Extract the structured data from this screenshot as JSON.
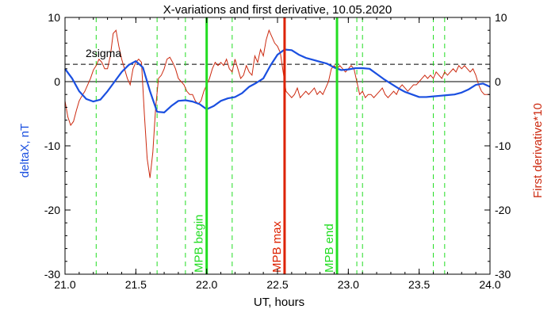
{
  "chart_data": {
    "type": "line",
    "title": "X-variations and first derivative, 10.05.2020",
    "xlabel": "UT, hours",
    "ylabel_left": "deltaX, nT",
    "ylabel_right": "First derivative*10",
    "xlim": [
      21.0,
      24.0
    ],
    "ylim": [
      -30,
      10
    ],
    "x_ticks": [
      "21.0",
      "21.5",
      "22.0",
      "22.5",
      "23.0",
      "23.5",
      "24.0"
    ],
    "x_tick_values": [
      21.0,
      21.5,
      22.0,
      22.5,
      23.0,
      23.5,
      24.0
    ],
    "y_ticks": [
      "10",
      "0",
      "-10",
      "-20",
      "-30"
    ],
    "y_tick_values": [
      10,
      0,
      -10,
      -20,
      -30
    ],
    "sigma_label": "2sigma",
    "sigma_level": 2.7,
    "colors": {
      "deltaX": "#1a4fe0",
      "derivative": "#cc2a10",
      "markers_green": "#22dd22",
      "marker_red": "#dd2200"
    },
    "series": [
      {
        "axis": "left",
        "x": [
          21.0,
          21.05,
          21.1,
          21.15,
          21.2,
          21.25,
          21.3,
          21.35,
          21.4,
          21.45,
          21.5,
          21.55,
          21.6,
          21.65,
          21.7,
          21.75,
          21.8,
          21.85,
          21.9,
          21.95,
          22.0,
          22.05,
          22.1,
          22.15,
          22.2,
          22.25,
          22.3,
          22.35,
          22.4,
          22.45,
          22.5,
          22.55,
          22.6,
          22.65,
          22.7,
          22.75,
          22.8,
          22.85,
          22.9,
          22.95,
          23.0,
          23.05,
          23.1,
          23.15,
          23.2,
          23.25,
          23.3,
          23.35,
          23.4,
          23.45,
          23.5,
          23.55,
          23.6,
          23.65,
          23.7,
          23.75,
          23.8,
          23.85,
          23.9,
          23.95,
          24.0
        ],
        "values": [
          2.0,
          0.5,
          -1.5,
          -2.7,
          -3.1,
          -2.8,
          -1.5,
          0.0,
          1.5,
          2.6,
          3.2,
          2.2,
          -1.5,
          -4.7,
          -4.8,
          -3.8,
          -3.0,
          -2.9,
          -3.1,
          -3.5,
          -4.3,
          -3.8,
          -3.0,
          -2.6,
          -2.4,
          -1.8,
          -0.8,
          -0.2,
          0.5,
          2.5,
          4.2,
          5.0,
          4.9,
          4.2,
          3.7,
          3.4,
          3.1,
          2.8,
          2.2,
          1.8,
          1.9,
          2.1,
          2.1,
          2.0,
          1.2,
          0.4,
          -0.3,
          -1.0,
          -1.6,
          -2.0,
          -2.4,
          -2.4,
          -2.3,
          -2.2,
          -2.1,
          -2.0,
          -1.7,
          -1.2,
          -0.5,
          -0.3,
          -0.8
        ]
      },
      {
        "axis": "right",
        "x": [
          21.0,
          21.02,
          21.04,
          21.06,
          21.08,
          21.1,
          21.12,
          21.14,
          21.16,
          21.18,
          21.2,
          21.22,
          21.24,
          21.26,
          21.28,
          21.3,
          21.32,
          21.34,
          21.36,
          21.38,
          21.4,
          21.42,
          21.44,
          21.46,
          21.48,
          21.5,
          21.52,
          21.54,
          21.56,
          21.58,
          21.6,
          21.62,
          21.64,
          21.66,
          21.68,
          21.7,
          21.72,
          21.74,
          21.76,
          21.78,
          21.8,
          21.82,
          21.84,
          21.86,
          21.88,
          21.9,
          21.92,
          21.94,
          21.96,
          21.98,
          22.0,
          22.02,
          22.04,
          22.06,
          22.08,
          22.1,
          22.12,
          22.14,
          22.16,
          22.18,
          22.2,
          22.22,
          22.24,
          22.26,
          22.28,
          22.3,
          22.32,
          22.34,
          22.36,
          22.38,
          22.4,
          22.42,
          22.44,
          22.46,
          22.48,
          22.5,
          22.52,
          22.54,
          22.56,
          22.58,
          22.6,
          22.62,
          22.64,
          22.66,
          22.68,
          22.7,
          22.72,
          22.74,
          22.76,
          22.78,
          22.8,
          22.82,
          22.84,
          22.86,
          22.88,
          22.9,
          22.92,
          22.94,
          22.96,
          22.98,
          23.0,
          23.02,
          23.04,
          23.06,
          23.08,
          23.1,
          23.12,
          23.14,
          23.16,
          23.18,
          23.2,
          23.22,
          23.24,
          23.26,
          23.28,
          23.3,
          23.32,
          23.34,
          23.36,
          23.38,
          23.4,
          23.42,
          23.44,
          23.46,
          23.48,
          23.5,
          23.52,
          23.54,
          23.56,
          23.58,
          23.6,
          23.62,
          23.64,
          23.66,
          23.68,
          23.7,
          23.72,
          23.74,
          23.76,
          23.78,
          23.8,
          23.82,
          23.84,
          23.86,
          23.88,
          23.9,
          23.92,
          23.94,
          23.96,
          23.98,
          24.0
        ],
        "values": [
          -3.0,
          -5.5,
          -6.8,
          -6.2,
          -4.5,
          -3.0,
          -2.2,
          -1.5,
          -0.5,
          0.5,
          1.8,
          2.5,
          3.5,
          3.0,
          2.0,
          2.0,
          4.0,
          7.5,
          8.0,
          5.5,
          3.5,
          2.0,
          0.5,
          -0.5,
          2.0,
          3.0,
          3.5,
          3.0,
          -5.0,
          -12.0,
          -15.0,
          -11.0,
          -4.0,
          0.5,
          1.0,
          2.0,
          3.5,
          3.8,
          3.0,
          2.0,
          0.5,
          0.0,
          -0.5,
          -1.5,
          -2.0,
          -2.0,
          -3.0,
          -3.5,
          -3.0,
          -1.5,
          -0.5,
          0.5,
          2.0,
          3.0,
          2.5,
          3.0,
          2.5,
          3.5,
          2.0,
          1.5,
          3.5,
          2.0,
          0.5,
          1.0,
          2.5,
          1.5,
          1.0,
          4.0,
          3.0,
          5.0,
          4.0,
          6.5,
          8.0,
          7.0,
          6.0,
          5.5,
          4.5,
          1.5,
          -1.5,
          -2.0,
          -2.5,
          -2.0,
          -1.0,
          -2.5,
          -2.0,
          -1.5,
          -2.0,
          -1.5,
          -1.0,
          -2.0,
          -1.5,
          -2.0,
          -1.0,
          0.0,
          2.0,
          2.5,
          2.0,
          2.5,
          2.0,
          1.5,
          2.0,
          2.5,
          2.0,
          0.0,
          -2.0,
          -1.5,
          -2.5,
          -2.0,
          -2.0,
          -2.5,
          -2.0,
          -1.5,
          -1.0,
          -2.0,
          -2.5,
          -2.0,
          -1.5,
          -2.0,
          -1.0,
          -0.5,
          -1.0,
          -1.5,
          -1.0,
          -0.5,
          -0.5,
          0.0,
          0.5,
          1.0,
          0.5,
          1.0,
          0.5,
          1.5,
          1.0,
          0.5,
          1.5,
          1.0,
          1.5,
          2.0,
          1.5,
          2.5,
          2.0,
          2.5,
          2.0,
          1.5,
          2.0,
          1.0,
          -0.5,
          -1.5,
          -2.0,
          -2.0,
          -2.0
        ]
      }
    ],
    "green_dashed_lines": [
      21.22,
      21.65,
      21.85,
      22.18,
      23.06,
      23.1,
      23.6,
      23.68
    ],
    "markers": [
      {
        "x": 22.0,
        "label": "MPB begin",
        "kind": "green"
      },
      {
        "x": 22.55,
        "label": "MPB max",
        "kind": "red"
      },
      {
        "x": 22.92,
        "label": "MPB end",
        "kind": "green"
      }
    ]
  }
}
